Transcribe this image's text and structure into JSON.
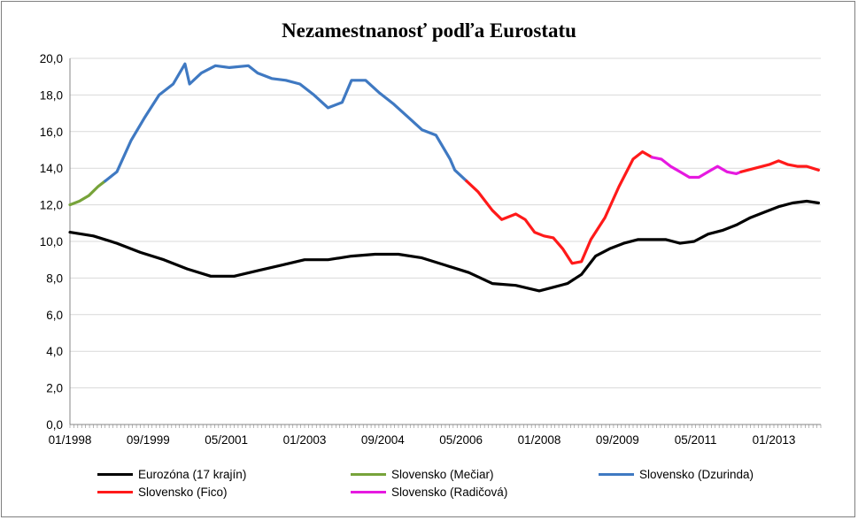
{
  "chart_data": {
    "type": "line",
    "title": "Nezamestnanosť podľa Eurostatu",
    "y_ticks": [
      "0,0",
      "2,0",
      "4,0",
      "6,0",
      "8,0",
      "10,0",
      "12,0",
      "14,0",
      "16,0",
      "18,0",
      "20,0"
    ],
    "x_ticks": [
      "01/1998",
      "09/1999",
      "05/2001",
      "01/2003",
      "09/2004",
      "05/2006",
      "01/2008",
      "09/2009",
      "05/2011",
      "01/2013"
    ],
    "ylim": [
      0,
      20
    ],
    "x_unit": "year (decimal)",
    "xlim": [
      1998.0,
      2014.0
    ],
    "grid": "horizontal",
    "legend_position": "bottom",
    "series": [
      {
        "name": "Eurozóna (17 krajín)",
        "color": "#000000",
        "x": [
          1998.0,
          1998.5,
          1999.0,
          1999.5,
          2000.0,
          2000.5,
          2001.0,
          2001.5,
          2002.0,
          2002.5,
          2003.0,
          2003.5,
          2004.0,
          2004.5,
          2005.0,
          2005.5,
          2006.0,
          2006.5,
          2007.0,
          2007.5,
          2008.0,
          2008.3,
          2008.6,
          2008.9,
          2009.2,
          2009.5,
          2009.8,
          2010.1,
          2010.4,
          2010.7,
          2011.0,
          2011.3,
          2011.6,
          2011.9,
          2012.2,
          2012.5,
          2012.8,
          2013.1,
          2013.4,
          2013.7,
          2013.95
        ],
        "y": [
          10.5,
          10.3,
          9.9,
          9.4,
          9.0,
          8.5,
          8.1,
          8.1,
          8.4,
          8.7,
          9.0,
          9.0,
          9.2,
          9.3,
          9.3,
          9.1,
          8.7,
          8.3,
          7.7,
          7.6,
          7.3,
          7.5,
          7.7,
          8.2,
          9.2,
          9.6,
          9.9,
          10.1,
          10.1,
          10.1,
          9.9,
          10.0,
          10.4,
          10.6,
          10.9,
          11.3,
          11.6,
          11.9,
          12.1,
          12.2,
          12.1
        ]
      },
      {
        "name": "Slovensko (Mečiar)",
        "color": "#77a33a",
        "x": [
          1998.0,
          1998.2,
          1998.4,
          1998.6,
          1998.75
        ],
        "y": [
          12.0,
          12.2,
          12.5,
          13.0,
          13.3
        ]
      },
      {
        "name": "Slovensko (Dzurinda)",
        "color": "#3f79c2",
        "x": [
          1998.75,
          1999.0,
          1999.3,
          1999.6,
          1999.9,
          2000.2,
          2000.45,
          2000.55,
          2000.8,
          2001.1,
          2001.4,
          2001.8,
          2002.0,
          2002.3,
          2002.6,
          2002.9,
          2003.2,
          2003.5,
          2003.8,
          2004.0,
          2004.3,
          2004.6,
          2004.9,
          2005.2,
          2005.5,
          2005.8,
          2006.1,
          2006.2,
          2006.45
        ],
        "y": [
          13.3,
          13.8,
          15.5,
          16.8,
          18.0,
          18.6,
          19.7,
          18.6,
          19.2,
          19.6,
          19.5,
          19.6,
          19.2,
          18.9,
          18.8,
          18.6,
          18.0,
          17.3,
          17.6,
          18.8,
          18.8,
          18.1,
          17.5,
          16.8,
          16.1,
          15.8,
          14.5,
          13.9,
          13.3
        ]
      },
      {
        "name": "Slovensko (Fico)",
        "color": "#ff1a1a",
        "x": [
          2006.45,
          2006.7,
          2007.0,
          2007.2,
          2007.5,
          2007.7,
          2007.9,
          2008.1,
          2008.3,
          2008.5,
          2008.7,
          2008.9,
          2009.1,
          2009.4,
          2009.7,
          2010.0,
          2010.2,
          2010.4
        ],
        "y": [
          13.3,
          12.7,
          11.7,
          11.2,
          11.5,
          11.2,
          10.5,
          10.3,
          10.2,
          9.6,
          8.8,
          8.9,
          10.1,
          11.3,
          13.0,
          14.5,
          14.9,
          14.6
        ]
      },
      {
        "name": "Slovensko (Radičová)",
        "color": "#e619e0",
        "x": [
          2010.4,
          2010.6,
          2010.8,
          2011.0,
          2011.2,
          2011.4,
          2011.6,
          2011.8,
          2012.0,
          2012.2,
          2012.3
        ],
        "y": [
          14.6,
          14.5,
          14.1,
          13.8,
          13.5,
          13.5,
          13.8,
          14.1,
          13.8,
          13.7,
          13.8
        ]
      },
      {
        "name": "Slovensko (Fico)",
        "color": "#ff1a1a",
        "x": [
          2012.3,
          2012.6,
          2012.9,
          2013.1,
          2013.3,
          2013.5,
          2013.7,
          2013.95
        ],
        "y": [
          13.8,
          14.0,
          14.2,
          14.4,
          14.2,
          14.1,
          14.1,
          13.9
        ]
      }
    ]
  },
  "legend": [
    {
      "label": "Eurozóna (17 krajín)",
      "color": "#000000"
    },
    {
      "label": "Slovensko (Mečiar)",
      "color": "#77a33a"
    },
    {
      "label": "Slovensko (Dzurinda)",
      "color": "#3f79c2"
    },
    {
      "label": "Slovensko (Fico)",
      "color": "#ff1a1a"
    },
    {
      "label": "Slovensko (Radičová)",
      "color": "#e619e0"
    }
  ]
}
